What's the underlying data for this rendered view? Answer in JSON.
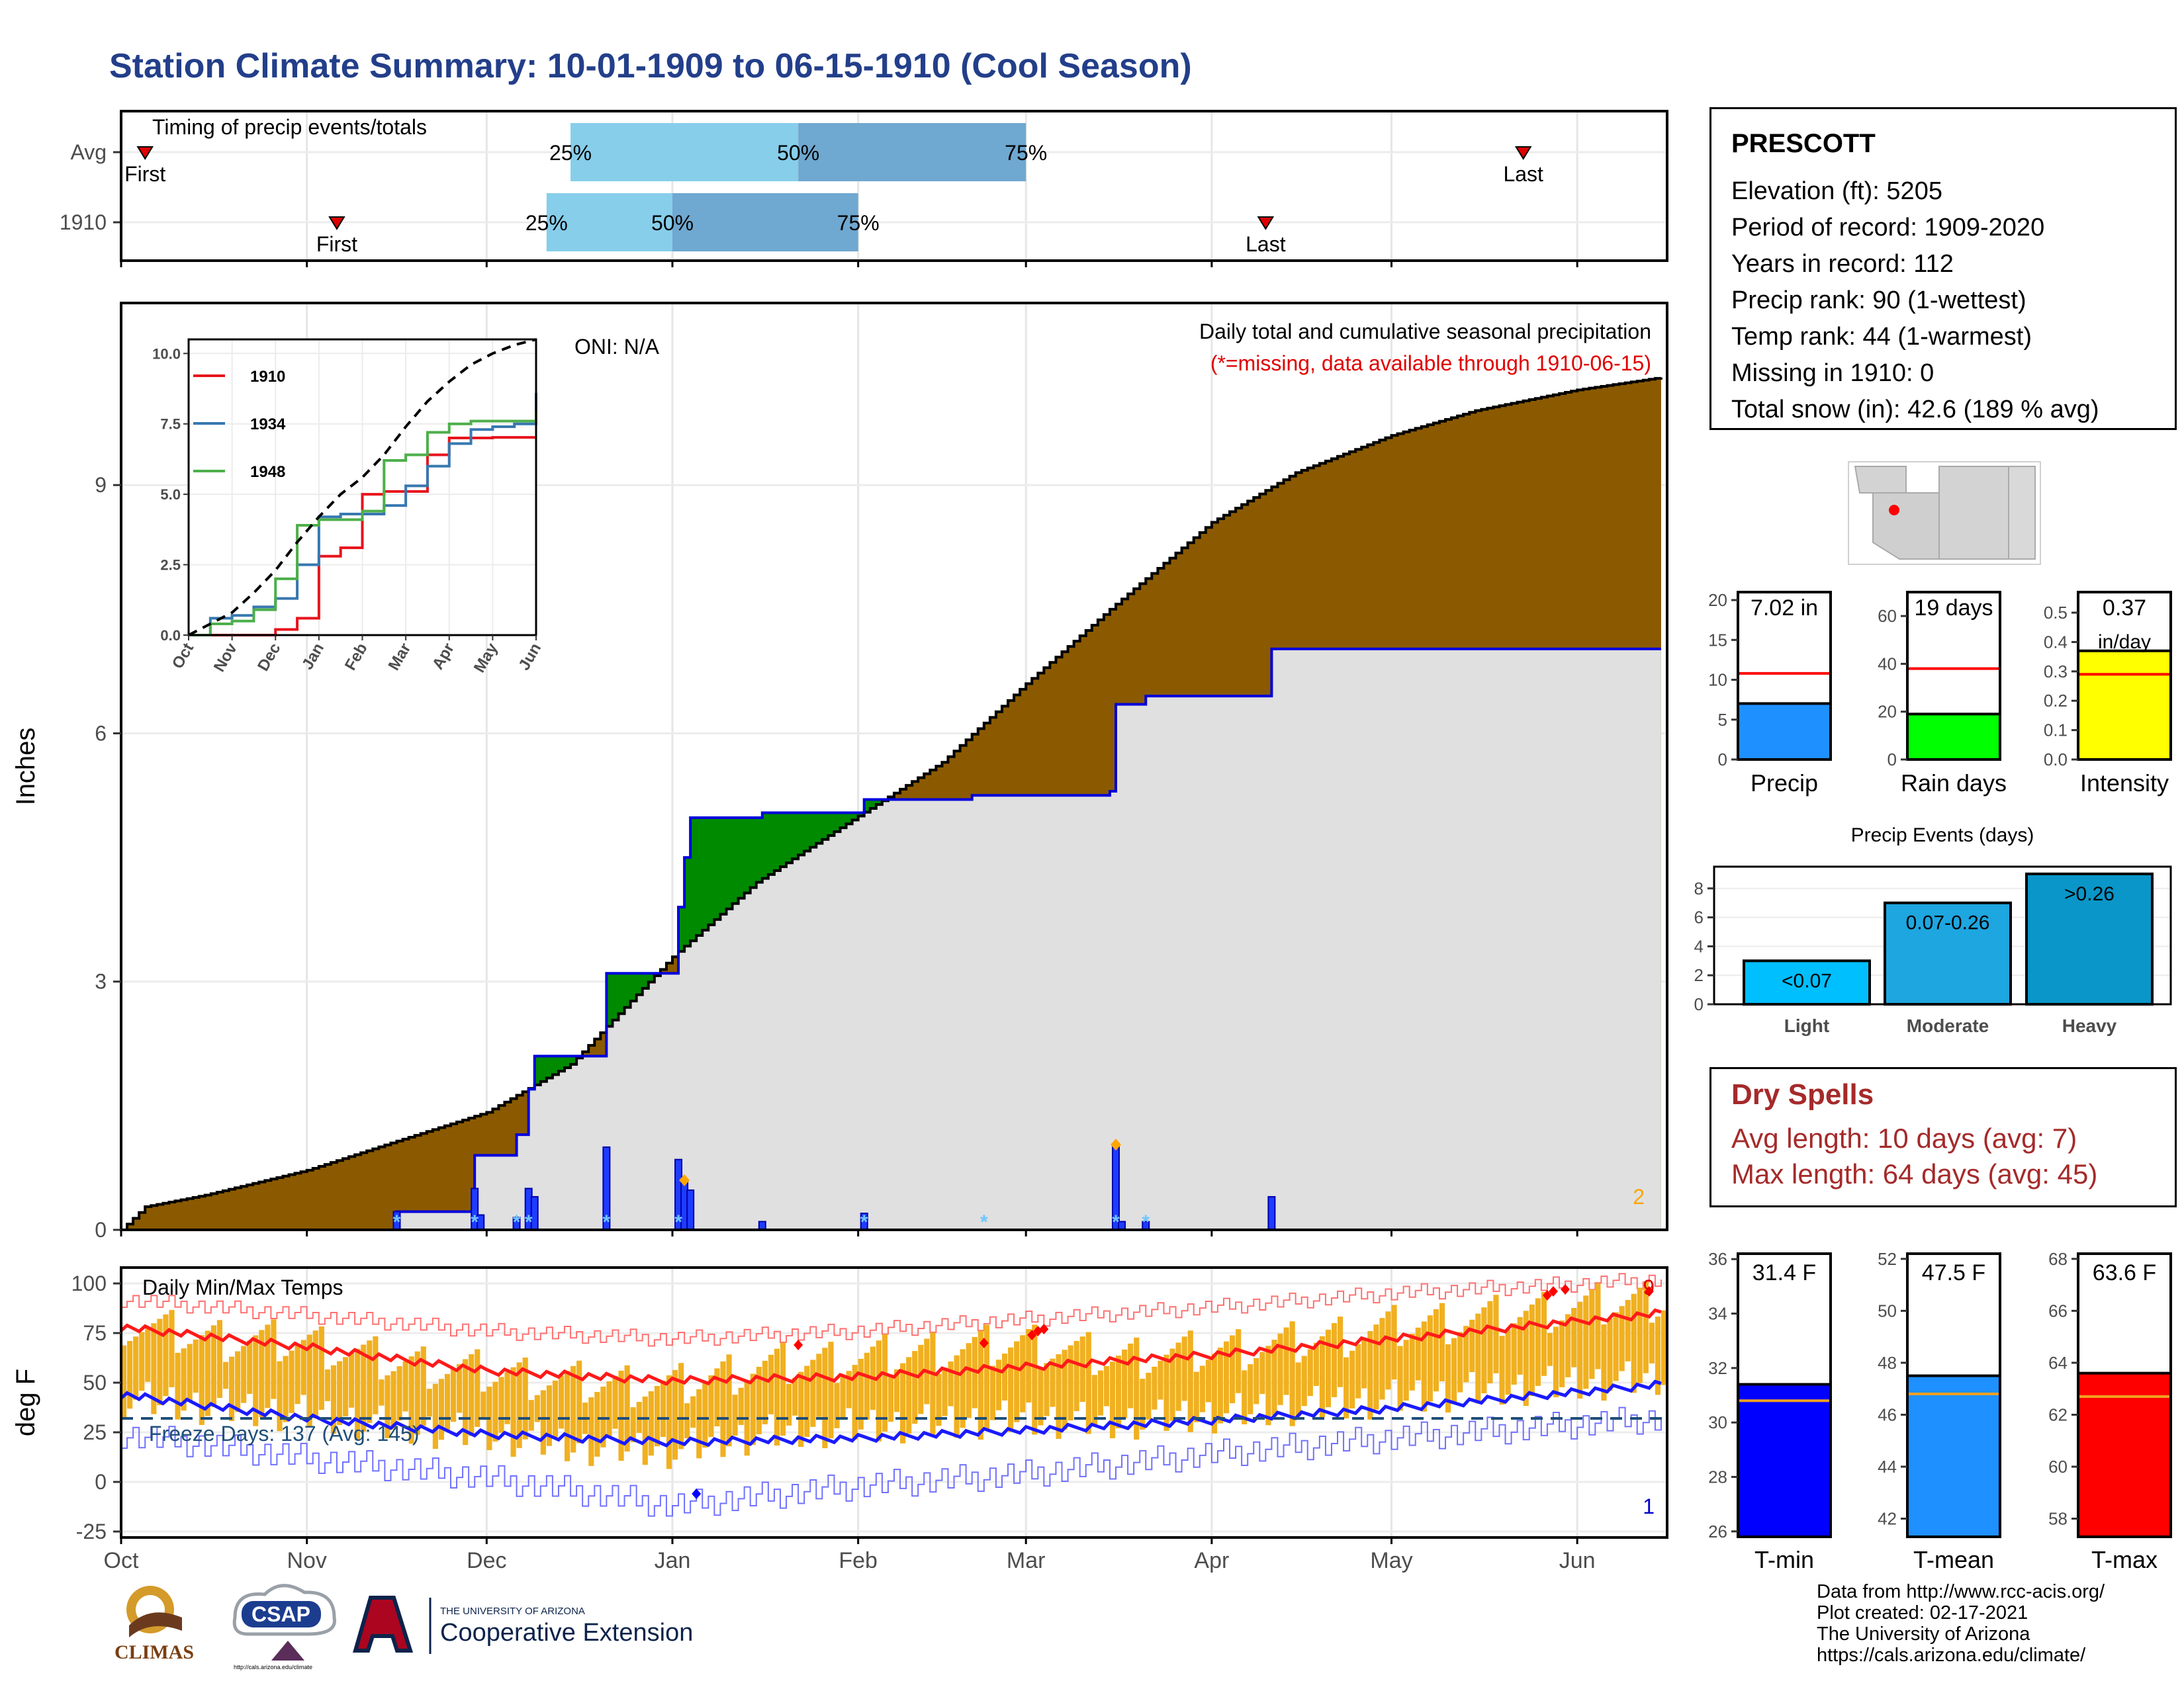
{
  "page": {
    "title": "Station Climate Summary: 10-01-1909 to 06-15-1910 (Cool Season)"
  },
  "station": {
    "name": "PRESCOTT",
    "lines": [
      "Elevation (ft): 5205",
      "Period of record: 1909-2020",
      "Years in record: 112",
      "Precip rank: 90 (1-wettest)",
      "Temp rank: 44 (1-warmest)",
      "Missing in 1910: 0",
      "Total snow (in): 42.6 (189 % avg)"
    ]
  },
  "dry_spells": {
    "title": "Dry Spells",
    "avg_length": "Avg length: 10 days (avg: 7)",
    "max_length": "Max length: 64 days (avg: 45)"
  },
  "credits": [
    "Data from http://www.rcc-acis.org/",
    "Plot created: 02-17-2021",
    "The University of Arizona",
    "https://cals.arizona.edu/climate/"
  ],
  "logos": {
    "climas": "CLIMAS",
    "csap": "CSAP",
    "csap_url": "http://cals.arizona.edu/climate",
    "ua_small": "THE UNIVERSITY OF ARIZONA",
    "ua_big": "Cooperative Extension"
  },
  "colors": {
    "title": "#233f8a",
    "precip_fill": "#8b5a00",
    "observed_fill": "#e0e0e0",
    "surplus_fill": "#008a00",
    "blue_line": "#0000dd",
    "light_blue": "#87ceeb",
    "mid_blue": "#6fa8d0",
    "temp_bar": "#f0b020",
    "dry_spells": "#a52a2a"
  },
  "chart_data": [
    {
      "id": "timing",
      "type": "bar",
      "title": "Timing of precip events/totals",
      "x_axis_months": [
        "Oct",
        "Nov",
        "Dec",
        "Jan",
        "Feb",
        "Mar",
        "Apr",
        "May",
        "Jun"
      ],
      "rows": [
        {
          "label": "Avg",
          "first": "1909-10-05",
          "last": "1910-05-23",
          "p25": "1909-12-15",
          "p50": "1910-01-22",
          "p75": "1910-03-01"
        },
        {
          "label": "1910",
          "first": "1909-11-06",
          "last": "1910-04-10",
          "p25": "1909-12-11",
          "p50": "1910-01-01",
          "p75": "1910-02-01"
        }
      ],
      "labels": {
        "first": "First",
        "last": "Last",
        "p25": "25%",
        "p50": "50%",
        "p75": "75%"
      }
    },
    {
      "id": "precip",
      "type": "area",
      "title": "Daily total and cumulative seasonal precipitation",
      "subtitle": "(*=missing, data available through 1910-06-15)",
      "oni": "ONI: N/A",
      "ylabel": "Inches",
      "ylim": [
        0,
        11.2
      ],
      "yticks": [
        0,
        3,
        6,
        9
      ],
      "corner_count": "2",
      "x_axis_months": [
        "Oct",
        "Nov",
        "Dec",
        "Jan",
        "Feb",
        "Mar",
        "Apr",
        "May",
        "Jun"
      ],
      "avg_cumulative": [
        {
          "d": "1909-10-01",
          "v": 0.0
        },
        {
          "d": "1909-10-05",
          "v": 0.28
        },
        {
          "d": "1909-10-15",
          "v": 0.42
        },
        {
          "d": "1909-11-01",
          "v": 0.72
        },
        {
          "d": "1909-11-15",
          "v": 1.05
        },
        {
          "d": "1909-12-01",
          "v": 1.42
        },
        {
          "d": "1909-12-15",
          "v": 2.0
        },
        {
          "d": "1910-01-01",
          "v": 3.3
        },
        {
          "d": "1910-01-15",
          "v": 4.2
        },
        {
          "d": "1910-02-01",
          "v": 5.0
        },
        {
          "d": "1910-02-15",
          "v": 5.65
        },
        {
          "d": "1910-03-01",
          "v": 6.6
        },
        {
          "d": "1910-03-15",
          "v": 7.5
        },
        {
          "d": "1910-04-01",
          "v": 8.55
        },
        {
          "d": "1910-04-15",
          "v": 9.15
        },
        {
          "d": "1910-05-01",
          "v": 9.6
        },
        {
          "d": "1910-05-15",
          "v": 9.9
        },
        {
          "d": "1910-06-01",
          "v": 10.15
        },
        {
          "d": "1910-06-15",
          "v": 10.3
        }
      ],
      "observed_cumulative": [
        {
          "d": "1909-10-01",
          "v": 0.0
        },
        {
          "d": "1909-11-16",
          "v": 0.22
        },
        {
          "d": "1909-11-28",
          "v": 0.22
        },
        {
          "d": "1909-11-29",
          "v": 0.9
        },
        {
          "d": "1909-12-05",
          "v": 0.9
        },
        {
          "d": "1909-12-06",
          "v": 1.15
        },
        {
          "d": "1909-12-08",
          "v": 1.7
        },
        {
          "d": "1909-12-09",
          "v": 2.1
        },
        {
          "d": "1909-12-20",
          "v": 2.1
        },
        {
          "d": "1909-12-21",
          "v": 3.1
        },
        {
          "d": "1910-01-01",
          "v": 3.1
        },
        {
          "d": "1910-01-02",
          "v": 3.9
        },
        {
          "d": "1910-01-03",
          "v": 4.5
        },
        {
          "d": "1910-01-04",
          "v": 4.98
        },
        {
          "d": "1910-01-15",
          "v": 4.98
        },
        {
          "d": "1910-01-16",
          "v": 5.04
        },
        {
          "d": "1910-02-01",
          "v": 5.04
        },
        {
          "d": "1910-02-02",
          "v": 5.2
        },
        {
          "d": "1910-02-20",
          "v": 5.25
        },
        {
          "d": "1910-03-15",
          "v": 5.3
        },
        {
          "d": "1910-03-16",
          "v": 6.35
        },
        {
          "d": "1910-03-21",
          "v": 6.45
        },
        {
          "d": "1910-04-10",
          "v": 6.45
        },
        {
          "d": "1910-04-11",
          "v": 7.02
        },
        {
          "d": "1910-06-15",
          "v": 7.02
        }
      ],
      "daily_precip": [
        {
          "d": "1909-11-16",
          "v": 0.22
        },
        {
          "d": "1909-11-29",
          "v": 0.5
        },
        {
          "d": "1909-11-30",
          "v": 0.18
        },
        {
          "d": "1909-12-06",
          "v": 0.15
        },
        {
          "d": "1909-12-08",
          "v": 0.5
        },
        {
          "d": "1909-12-09",
          "v": 0.4
        },
        {
          "d": "1909-12-21",
          "v": 1.0
        },
        {
          "d": "1910-01-02",
          "v": 0.85
        },
        {
          "d": "1910-01-03",
          "v": 0.6
        },
        {
          "d": "1910-01-04",
          "v": 0.48
        },
        {
          "d": "1910-01-16",
          "v": 0.1
        },
        {
          "d": "1910-02-02",
          "v": 0.2
        },
        {
          "d": "1910-03-16",
          "v": 1.0
        },
        {
          "d": "1910-03-17",
          "v": 0.1
        },
        {
          "d": "1910-03-21",
          "v": 0.1
        },
        {
          "d": "1910-04-11",
          "v": 0.4
        }
      ],
      "snow_days": [
        "1909-11-16",
        "1909-11-29",
        "1909-12-06",
        "1909-12-08",
        "1909-12-21",
        "1910-01-02",
        "1910-02-02",
        "1910-02-22",
        "1910-03-16",
        "1910-03-21"
      ],
      "markers": [
        {
          "d": "1910-01-03",
          "v": 0.6
        },
        {
          "d": "1910-03-16",
          "v": 1.03
        }
      ]
    },
    {
      "id": "inset",
      "type": "line",
      "ylim": [
        0,
        10.5
      ],
      "yticks": [
        0.0,
        2.5,
        5.0,
        7.5,
        10.0
      ],
      "x_axis_months": [
        "Oct",
        "Nov",
        "Dec",
        "Jan",
        "Feb",
        "Mar",
        "Apr",
        "May",
        "Jun"
      ],
      "series": [
        {
          "name": "1910",
          "color": "#e8141c",
          "values": [
            0,
            0,
            0,
            0,
            0.2,
            0.6,
            2.8,
            3.1,
            5.0,
            5.1,
            5.1,
            6.4,
            7.0,
            7.0,
            7.02,
            7.02,
            7.02
          ]
        },
        {
          "name": "1934",
          "color": "#3778b0",
          "values": [
            0,
            0.6,
            0.7,
            1.0,
            1.3,
            2.5,
            4.2,
            4.3,
            4.3,
            4.6,
            5.3,
            6.0,
            6.8,
            7.3,
            7.4,
            7.5,
            8.6
          ]
        },
        {
          "name": "1948",
          "color": "#4daf4a",
          "values": [
            0,
            0.4,
            0.5,
            0.9,
            2.0,
            3.9,
            4.1,
            4.1,
            4.4,
            6.2,
            6.4,
            7.2,
            7.5,
            7.6,
            7.6,
            7.6,
            8.0
          ]
        },
        {
          "name": "",
          "color": "#000000",
          "dashed": true,
          "values": [
            0,
            0.4,
            0.8,
            1.5,
            2.3,
            3.3,
            4.2,
            5.0,
            5.6,
            6.4,
            7.4,
            8.3,
            9.0,
            9.6,
            10.0,
            10.3,
            10.5
          ]
        }
      ]
    },
    {
      "id": "precip_stats",
      "type": "bar",
      "panels": [
        {
          "label": "Precip",
          "value_text": "7.02 in",
          "value": 7.02,
          "avg": 10.8,
          "ylim": [
            0,
            21
          ],
          "yticks": [
            0,
            5,
            10,
            15,
            20
          ],
          "color": "#1e90ff"
        },
        {
          "label": "Rain days",
          "value_text": "19 days",
          "value": 19,
          "avg": 38,
          "ylim": [
            0,
            70
          ],
          "yticks": [
            0,
            20,
            40,
            60
          ],
          "color": "#00ff00"
        },
        {
          "label": "Intensity",
          "value_text": "0.37",
          "value_text2": "in/day",
          "value": 0.37,
          "avg": 0.29,
          "ylim": [
            0,
            0.57
          ],
          "yticks": [
            0.0,
            0.1,
            0.2,
            0.3,
            0.4,
            0.5
          ],
          "color": "#ffff00"
        }
      ]
    },
    {
      "id": "events",
      "type": "bar",
      "title": "Precip Events (days)",
      "categories": [
        "Light",
        "Moderate",
        "Heavy"
      ],
      "values": [
        3,
        7,
        9
      ],
      "bar_labels": [
        "<0.07",
        "0.07-0.26",
        ">0.26"
      ],
      "colors": [
        "#00bfff",
        "#1ea6e0",
        "#0a96c8"
      ],
      "ylim": [
        0,
        9.5
      ],
      "yticks": [
        0,
        2,
        4,
        6,
        8
      ]
    },
    {
      "id": "temps",
      "type": "bar",
      "title": "Daily Min/Max Temps",
      "freeze_text": "Freeze Days: 137 (Avg: 145)",
      "ylabel": "deg F",
      "ylim": [
        -28,
        108
      ],
      "yticks": [
        -25,
        0,
        25,
        50,
        75,
        100
      ],
      "freeze_line": 32,
      "x_axis_months": [
        "Oct",
        "Nov",
        "Dec",
        "Jan",
        "Feb",
        "Mar",
        "Apr",
        "May",
        "Jun"
      ],
      "count_high": "9",
      "count_low": "1",
      "avg_max": [
        {
          "d": "1909-10-01",
          "v": 78
        },
        {
          "d": "1909-11-01",
          "v": 68
        },
        {
          "d": "1909-12-01",
          "v": 56
        },
        {
          "d": "1910-01-01",
          "v": 51
        },
        {
          "d": "1910-02-01",
          "v": 53
        },
        {
          "d": "1910-03-01",
          "v": 58
        },
        {
          "d": "1910-04-01",
          "v": 64
        },
        {
          "d": "1910-05-01",
          "v": 72
        },
        {
          "d": "1910-06-15",
          "v": 85
        }
      ],
      "avg_min": [
        {
          "d": "1909-10-01",
          "v": 44
        },
        {
          "d": "1909-11-01",
          "v": 32
        },
        {
          "d": "1909-12-01",
          "v": 24
        },
        {
          "d": "1910-01-01",
          "v": 20
        },
        {
          "d": "1910-02-01",
          "v": 22
        },
        {
          "d": "1910-03-01",
          "v": 26
        },
        {
          "d": "1910-04-01",
          "v": 31
        },
        {
          "d": "1910-05-01",
          "v": 37
        },
        {
          "d": "1910-06-15",
          "v": 49
        }
      ],
      "record_max": [
        {
          "d": "1909-10-01",
          "v": 92
        },
        {
          "d": "1909-11-01",
          "v": 84
        },
        {
          "d": "1909-12-01",
          "v": 76
        },
        {
          "d": "1910-01-01",
          "v": 72
        },
        {
          "d": "1910-02-01",
          "v": 76
        },
        {
          "d": "1910-03-01",
          "v": 82
        },
        {
          "d": "1910-04-01",
          "v": 88
        },
        {
          "d": "1910-05-01",
          "v": 95
        },
        {
          "d": "1910-06-15",
          "v": 102
        }
      ],
      "record_min": [
        {
          "d": "1909-10-01",
          "v": 24
        },
        {
          "d": "1909-11-01",
          "v": 12
        },
        {
          "d": "1909-12-01",
          "v": 2
        },
        {
          "d": "1910-01-01",
          "v": -12
        },
        {
          "d": "1910-02-01",
          "v": -2
        },
        {
          "d": "1910-03-01",
          "v": 4
        },
        {
          "d": "1910-04-01",
          "v": 14
        },
        {
          "d": "1910-05-01",
          "v": 22
        },
        {
          "d": "1910-06-15",
          "v": 32
        }
      ],
      "daily_max": [
        {
          "d": "1909-10-01",
          "v": 80
        },
        {
          "d": "1909-10-15",
          "v": 72
        },
        {
          "d": "1909-11-01",
          "v": 70
        },
        {
          "d": "1909-11-15",
          "v": 60
        },
        {
          "d": "1909-12-01",
          "v": 55
        },
        {
          "d": "1909-12-15",
          "v": 50
        },
        {
          "d": "1910-01-01",
          "v": 48
        },
        {
          "d": "1910-01-15",
          "v": 58
        },
        {
          "d": "1910-02-01",
          "v": 62
        },
        {
          "d": "1910-02-15",
          "v": 66
        },
        {
          "d": "1910-03-01",
          "v": 70
        },
        {
          "d": "1910-03-15",
          "v": 62
        },
        {
          "d": "1910-04-01",
          "v": 66
        },
        {
          "d": "1910-04-15",
          "v": 70
        },
        {
          "d": "1910-05-01",
          "v": 78
        },
        {
          "d": "1910-05-15",
          "v": 82
        },
        {
          "d": "1910-06-01",
          "v": 88
        },
        {
          "d": "1910-06-15",
          "v": 92
        }
      ],
      "daily_min": [
        {
          "d": "1909-10-01",
          "v": 42
        },
        {
          "d": "1909-10-15",
          "v": 38
        },
        {
          "d": "1909-11-01",
          "v": 34
        },
        {
          "d": "1909-11-15",
          "v": 28
        },
        {
          "d": "1909-12-01",
          "v": 24
        },
        {
          "d": "1909-12-15",
          "v": 18
        },
        {
          "d": "1910-01-01",
          "v": 16
        },
        {
          "d": "1910-01-15",
          "v": 24
        },
        {
          "d": "1910-02-01",
          "v": 28
        },
        {
          "d": "1910-02-15",
          "v": 30
        },
        {
          "d": "1910-03-01",
          "v": 32
        },
        {
          "d": "1910-03-15",
          "v": 30
        },
        {
          "d": "1910-04-01",
          "v": 34
        },
        {
          "d": "1910-04-15",
          "v": 38
        },
        {
          "d": "1910-05-01",
          "v": 42
        },
        {
          "d": "1910-05-15",
          "v": 46
        },
        {
          "d": "1910-06-01",
          "v": 50
        },
        {
          "d": "1910-06-15",
          "v": 52
        }
      ],
      "record_high_days": [
        {
          "d": "1910-01-22",
          "v": 69
        },
        {
          "d": "1910-02-22",
          "v": 70
        },
        {
          "d": "1910-03-02",
          "v": 74
        },
        {
          "d": "1910-03-03",
          "v": 76
        },
        {
          "d": "1910-03-04",
          "v": 77
        },
        {
          "d": "1910-05-27",
          "v": 94
        },
        {
          "d": "1910-05-28",
          "v": 96
        },
        {
          "d": "1910-05-30",
          "v": 97
        },
        {
          "d": "1910-06-13",
          "v": 96
        }
      ],
      "record_low_days": [
        {
          "d": "1910-01-05",
          "v": -6
        }
      ]
    },
    {
      "id": "temp_stats",
      "type": "bar",
      "panels": [
        {
          "label": "T-min",
          "value_text": "31.4 F",
          "value": 31.4,
          "avg": 30.8,
          "ylim": [
            25.8,
            36.2
          ],
          "yticks": [
            26,
            28,
            30,
            32,
            34,
            36
          ],
          "color": "#0000ff"
        },
        {
          "label": "T-mean",
          "value_text": "47.5 F",
          "value": 47.5,
          "avg": 46.8,
          "ylim": [
            41.3,
            52.2
          ],
          "yticks": [
            42,
            44,
            46,
            48,
            50,
            52
          ],
          "color": "#1e90ff"
        },
        {
          "label": "T-max",
          "value_text": "63.6 F",
          "value": 63.6,
          "avg": 62.7,
          "ylim": [
            57.3,
            68.2
          ],
          "yticks": [
            58,
            60,
            62,
            64,
            66,
            68
          ],
          "color": "#ff0000"
        }
      ]
    }
  ]
}
